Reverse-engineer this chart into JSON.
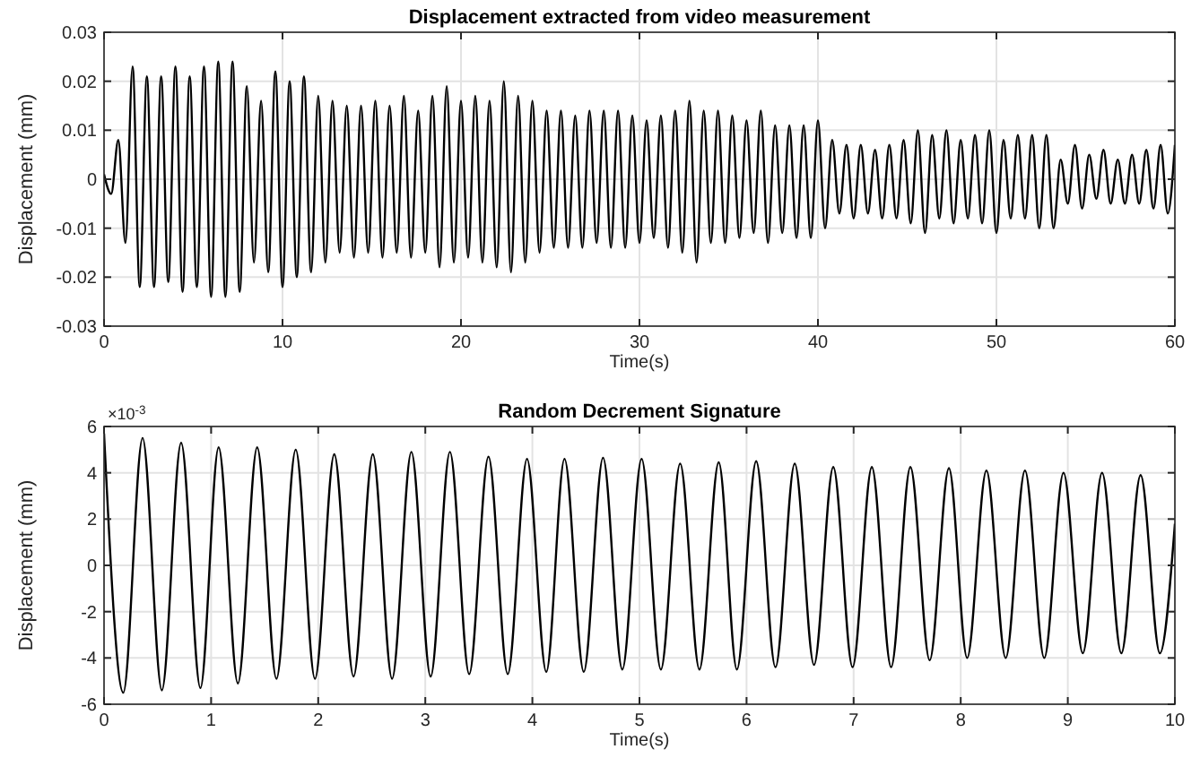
{
  "chart_data": [
    {
      "type": "line",
      "title": "Displacement extracted from video measurement",
      "xlabel": "Time(s)",
      "ylabel": "Displacement (mm)",
      "xlim": [
        0,
        60
      ],
      "xticks": [
        0,
        10,
        20,
        30,
        40,
        50,
        60
      ],
      "ylim": [
        -0.03,
        0.03
      ],
      "yticks": [
        -0.03,
        -0.02,
        -0.01,
        0,
        0.01,
        0.02,
        0.03
      ],
      "grid": true,
      "x": [
        0,
        0.4,
        0.8,
        1.2,
        1.6,
        2,
        2.4,
        2.8,
        3.2,
        3.6,
        4,
        4.4,
        4.8,
        5.2,
        5.6,
        6,
        6.4,
        6.8,
        7.2,
        7.6,
        8,
        8.4,
        8.8,
        9.2,
        9.6,
        10,
        10.4,
        10.8,
        11.2,
        11.6,
        12,
        12.4,
        12.8,
        13.2,
        13.6,
        14,
        14.4,
        14.8,
        15.2,
        15.6,
        16,
        16.4,
        16.8,
        17.2,
        17.6,
        18,
        18.4,
        18.8,
        19.2,
        19.6,
        20,
        20.4,
        20.8,
        21.2,
        21.6,
        22,
        22.4,
        22.8,
        23.2,
        23.6,
        24,
        24.4,
        24.8,
        25.2,
        25.6,
        26,
        26.4,
        26.8,
        27.2,
        27.6,
        28,
        28.4,
        28.8,
        29.2,
        29.6,
        30,
        30.4,
        30.8,
        31.2,
        31.6,
        32,
        32.4,
        32.8,
        33.2,
        33.6,
        34,
        34.4,
        34.8,
        35.2,
        35.6,
        36,
        36.4,
        36.8,
        37.2,
        37.6,
        38,
        38.4,
        38.8,
        39.2,
        39.6,
        40,
        40.4,
        40.8,
        41.2,
        41.6,
        42,
        42.4,
        42.8,
        43.2,
        43.6,
        44,
        44.4,
        44.8,
        45.2,
        45.6,
        46,
        46.4,
        46.8,
        47.2,
        47.6,
        48,
        48.4,
        48.8,
        49.2,
        49.6,
        50,
        50.4,
        50.8,
        51.2,
        51.6,
        52,
        52.4,
        52.8,
        53.2,
        53.6,
        54,
        54.4,
        54.8,
        55.2,
        55.6,
        56,
        56.4,
        56.8,
        57.2,
        57.6,
        58,
        58.4,
        58.8,
        59.2,
        59.6,
        60
      ],
      "series": [
        {
          "color": "#000000",
          "values": [
            0.001,
            -0.003,
            0.008,
            -0.013,
            0.023,
            -0.022,
            0.021,
            -0.022,
            0.021,
            -0.021,
            0.023,
            -0.023,
            0.021,
            -0.022,
            0.023,
            -0.024,
            0.024,
            -0.024,
            0.024,
            -0.023,
            0.019,
            -0.017,
            0.016,
            -0.019,
            0.022,
            -0.022,
            0.02,
            -0.02,
            0.021,
            -0.019,
            0.017,
            -0.017,
            0.016,
            -0.015,
            0.015,
            -0.016,
            0.015,
            -0.015,
            0.016,
            -0.016,
            0.015,
            -0.015,
            0.017,
            -0.016,
            0.014,
            -0.015,
            0.017,
            -0.018,
            0.019,
            -0.017,
            0.016,
            -0.016,
            0.017,
            -0.017,
            0.016,
            -0.018,
            0.02,
            -0.019,
            0.017,
            -0.017,
            0.016,
            -0.015,
            0.014,
            -0.014,
            0.014,
            -0.014,
            0.013,
            -0.014,
            0.014,
            -0.013,
            0.014,
            -0.014,
            0.014,
            -0.014,
            0.013,
            -0.013,
            0.012,
            -0.012,
            0.013,
            -0.014,
            0.014,
            -0.015,
            0.016,
            -0.017,
            0.014,
            -0.013,
            0.014,
            -0.013,
            0.013,
            -0.012,
            0.012,
            -0.011,
            0.014,
            -0.013,
            0.011,
            -0.011,
            0.011,
            -0.012,
            0.011,
            -0.012,
            0.012,
            -0.01,
            0.008,
            -0.007,
            0.007,
            -0.008,
            0.007,
            -0.007,
            0.006,
            -0.008,
            0.007,
            -0.008,
            0.008,
            -0.009,
            0.01,
            -0.011,
            0.009,
            -0.008,
            0.01,
            -0.009,
            0.008,
            -0.008,
            0.009,
            -0.009,
            0.01,
            -0.011,
            0.008,
            -0.008,
            0.009,
            -0.008,
            0.009,
            -0.01,
            0.009,
            -0.01,
            0.004,
            -0.005,
            0.007,
            -0.006,
            0.005,
            -0.004,
            0.006,
            -0.005,
            0.004,
            -0.005,
            0.005,
            -0.005,
            0.006,
            -0.006,
            0.007,
            -0.007,
            0.007
          ]
        }
      ]
    },
    {
      "type": "line",
      "title": "Random Decrement Signature",
      "xlabel": "Time(s)",
      "ylabel": "Displacement (mm)",
      "annotations": [
        "×10$^{-3}$"
      ],
      "xlim": [
        0,
        10
      ],
      "xticks": [
        0,
        1,
        2,
        3,
        4,
        5,
        6,
        7,
        8,
        9,
        10
      ],
      "ylim": [
        -6,
        6
      ],
      "yticks": [
        -6,
        -4,
        -2,
        0,
        2,
        4,
        6
      ],
      "grid": true,
      "x": [
        0,
        0.18,
        0.36,
        0.54,
        0.72,
        0.9,
        1.07,
        1.25,
        1.43,
        1.61,
        1.79,
        1.97,
        2.15,
        2.33,
        2.51,
        2.69,
        2.87,
        3.05,
        3.23,
        3.41,
        3.59,
        3.77,
        3.95,
        4.13,
        4.3,
        4.48,
        4.66,
        4.84,
        5.02,
        5.2,
        5.38,
        5.56,
        5.74,
        5.91,
        6.09,
        6.27,
        6.45,
        6.63,
        6.81,
        6.99,
        7.17,
        7.35,
        7.53,
        7.71,
        7.89,
        8.06,
        8.24,
        8.42,
        8.6,
        8.78,
        8.96,
        9.14,
        9.32,
        9.5,
        9.68,
        9.86,
        10
      ],
      "series": [
        {
          "color": "#000000",
          "values": [
            5.7,
            -5.5,
            5.5,
            -5.4,
            5.3,
            -5.3,
            5.1,
            -5.1,
            5.1,
            -4.9,
            5.0,
            -4.9,
            4.8,
            -4.8,
            4.8,
            -4.9,
            4.9,
            -4.8,
            4.9,
            -4.7,
            4.7,
            -4.7,
            4.6,
            -4.6,
            4.6,
            -4.6,
            4.65,
            -4.5,
            4.6,
            -4.5,
            4.4,
            -4.5,
            4.45,
            -4.5,
            4.5,
            -4.4,
            4.4,
            -4.3,
            4.25,
            -4.4,
            4.25,
            -4.4,
            4.25,
            -4.1,
            4.2,
            -4.0,
            4.1,
            -4.0,
            4.1,
            -4.0,
            4.0,
            -3.8,
            4.0,
            -3.8,
            3.9,
            -3.8,
            1.8
          ]
        }
      ]
    }
  ]
}
